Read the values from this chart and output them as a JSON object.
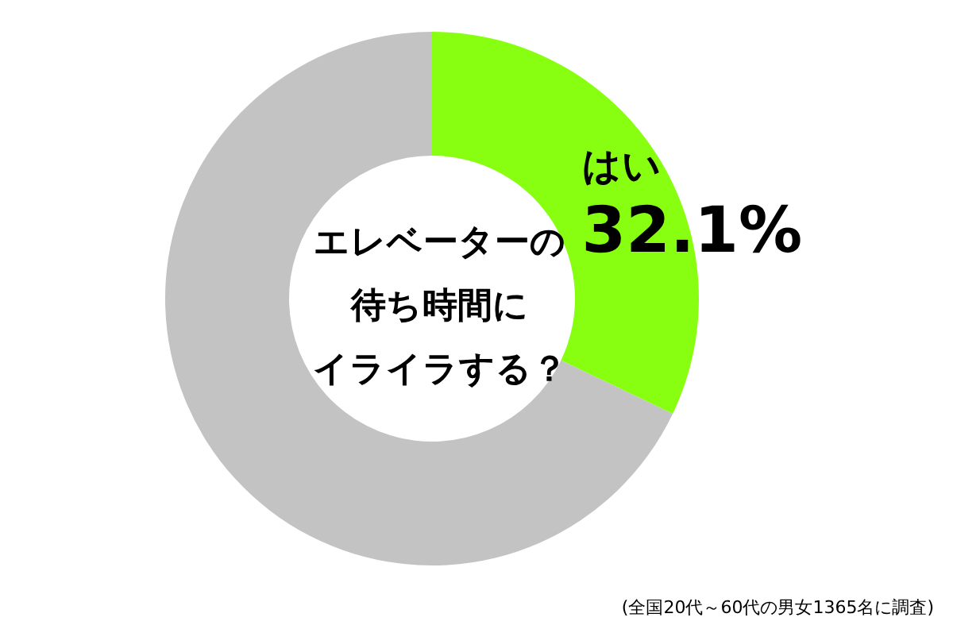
{
  "chart_data": {
    "type": "donut",
    "title": "エレベーターの待ち時間にイライラする？",
    "categories": [
      "はい",
      null
    ],
    "values": [
      32.1,
      67.9
    ],
    "colors": [
      "#88ff11",
      "#c3c3c3"
    ],
    "value_labels": [
      "32.1%",
      null
    ],
    "legend": false,
    "annotations": [
      "(全国20代～60代の男女1365名に調査)"
    ]
  }
}
